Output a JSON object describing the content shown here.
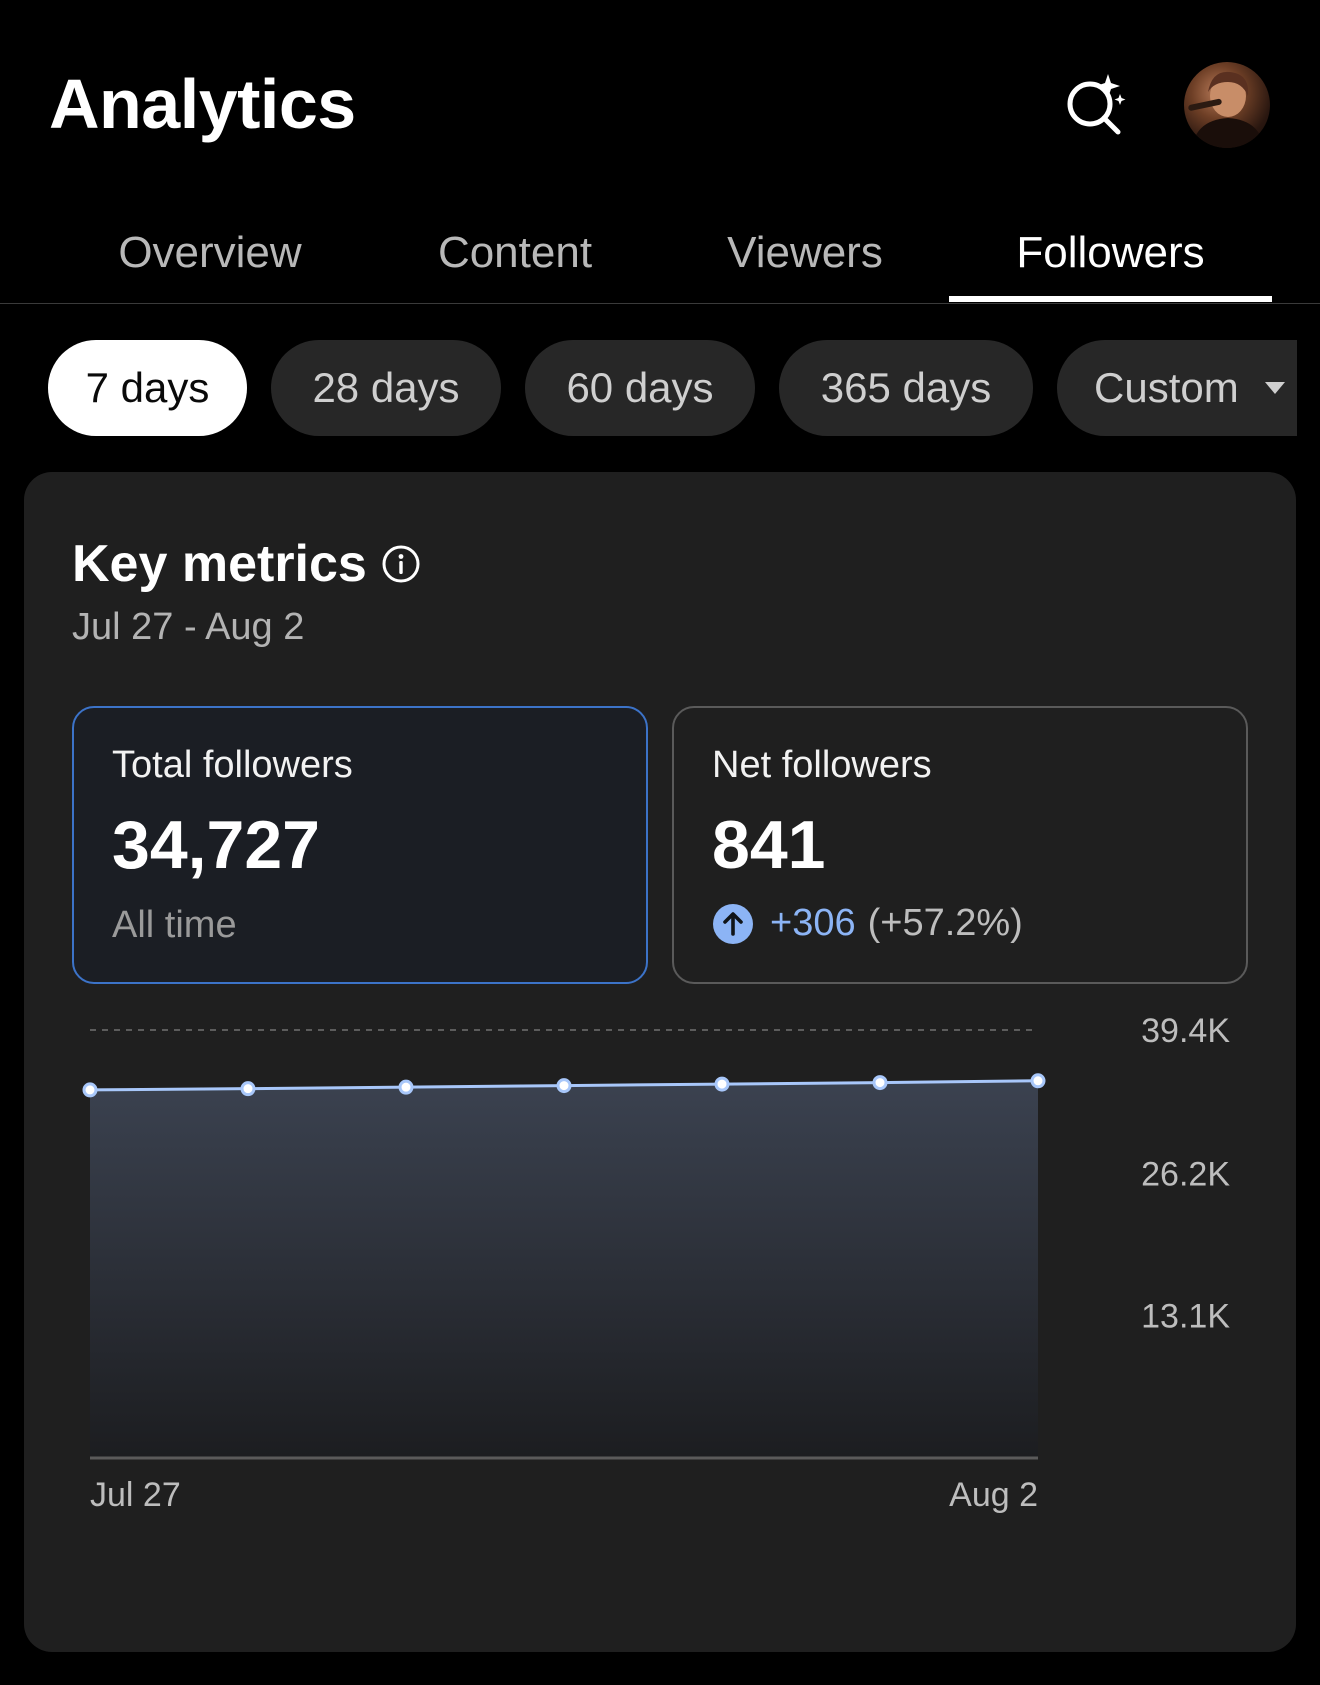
{
  "header": {
    "title": "Analytics",
    "search_icon": "ai-search-sparkle-icon",
    "avatar_icon": "profile-avatar"
  },
  "tabs": [
    {
      "label": "Overview",
      "active": false
    },
    {
      "label": "Content",
      "active": false
    },
    {
      "label": "Viewers",
      "active": false
    },
    {
      "label": "Followers",
      "active": true
    }
  ],
  "ranges": [
    {
      "label": "7 days",
      "active": true
    },
    {
      "label": "28 days",
      "active": false
    },
    {
      "label": "60 days",
      "active": false
    },
    {
      "label": "365 days",
      "active": false
    },
    {
      "label": "Custom",
      "active": false,
      "dropdown": true
    }
  ],
  "key_metrics": {
    "title": "Key metrics",
    "date_range": "Jul 27 - Aug 2",
    "total_followers": {
      "label": "Total followers",
      "value": "34,727",
      "sub": "All time"
    },
    "net_followers": {
      "label": "Net followers",
      "value": "841",
      "delta_abs": "+306",
      "delta_pct": "(+57.2%)"
    }
  },
  "colors": {
    "accent": "#8cb4f5",
    "line": "#a8c7fa",
    "selected_border": "#3c73c8",
    "card_bg": "#1f1f1f"
  },
  "chart_data": {
    "type": "area",
    "x": [
      "Jul 27",
      "Jul 28",
      "Jul 29",
      "Jul 30",
      "Jul 31",
      "Aug 1",
      "Aug 2"
    ],
    "x_tick_labels": [
      "Jul 27",
      "Aug 2"
    ],
    "series": [
      {
        "values": [
          33886,
          34000,
          34140,
          34280,
          34420,
          34560,
          34727
        ]
      }
    ],
    "y_ticks": [
      "13.1K",
      "26.2K",
      "39.4K"
    ],
    "y_tick_values": [
      13100,
      26200,
      39400
    ],
    "ylim": [
      0,
      39400
    ],
    "grid": true,
    "y_axis_position": "right"
  }
}
